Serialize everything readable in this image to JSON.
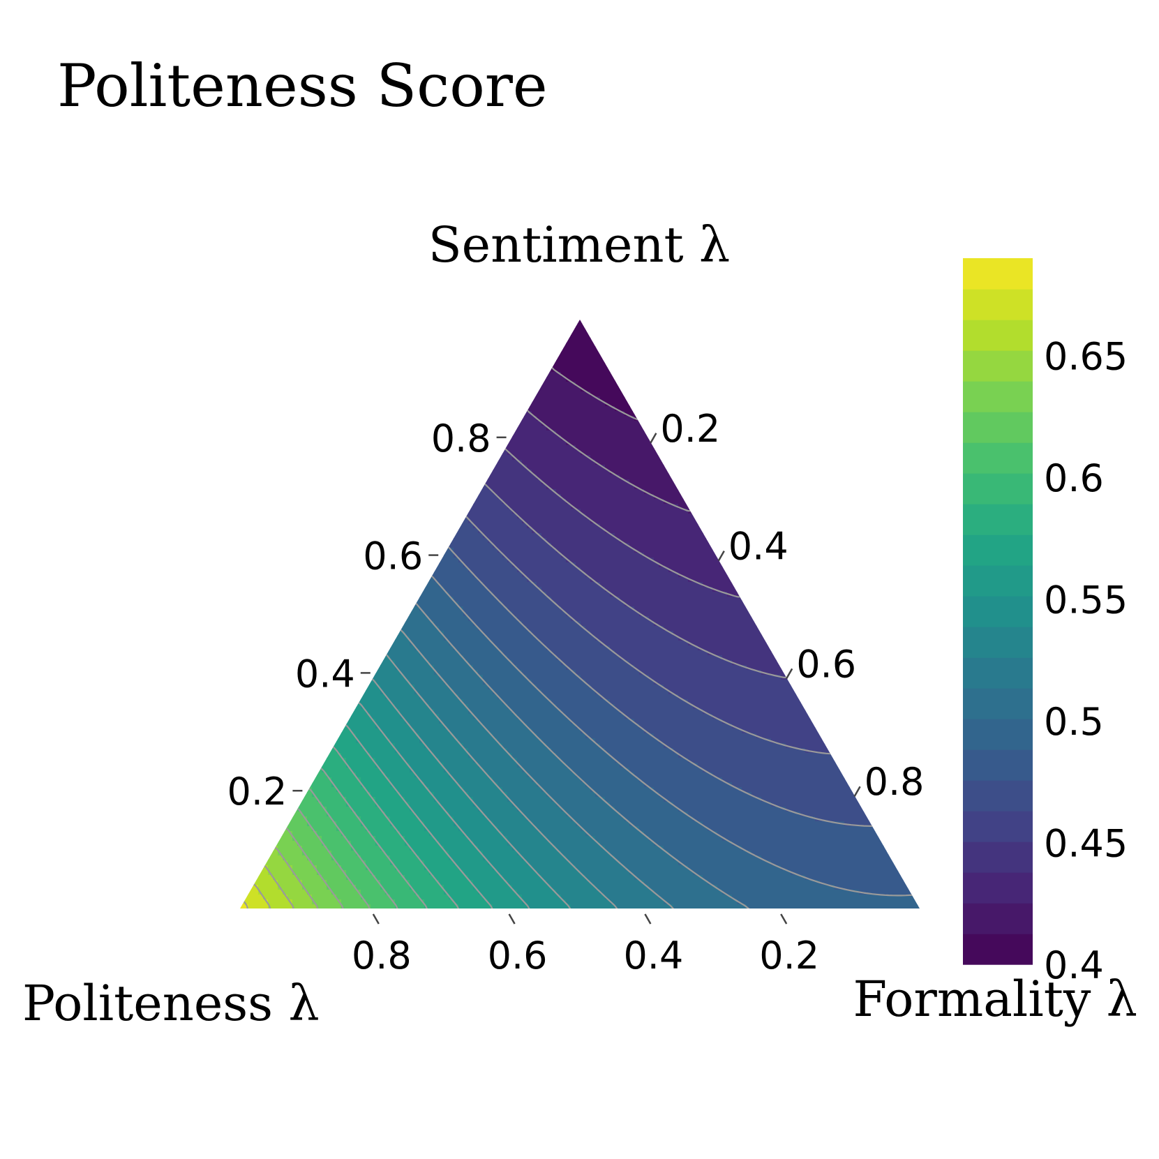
{
  "chart_data": {
    "type": "ternary-contour",
    "title": "Politeness Score",
    "axes": {
      "top": {
        "label": "Sentiment λ",
        "ticks": [
          "0.8",
          "0.6",
          "0.4",
          "0.2"
        ],
        "tick_values": [
          0.8,
          0.6,
          0.4,
          0.2
        ]
      },
      "right": {
        "label": "Formality λ",
        "ticks": [
          "0.2",
          "0.4",
          "0.6",
          "0.8"
        ],
        "tick_values": [
          0.2,
          0.4,
          0.6,
          0.8
        ]
      },
      "left": {
        "label": "Politeness λ",
        "ticks": [
          "0.8",
          "0.6",
          "0.4",
          "0.2"
        ],
        "tick_values": [
          0.8,
          0.6,
          0.4,
          0.2
        ]
      }
    },
    "colorbar": {
      "min": 0.4,
      "max": 0.69,
      "step": 0.0125,
      "ticks": [
        "0.65",
        "0.6",
        "0.55",
        "0.5",
        "0.45",
        "0.4"
      ],
      "tick_values": [
        0.65,
        0.6,
        0.55,
        0.5,
        0.45,
        0.4
      ],
      "colormap": "viridis"
    },
    "contour_levels": [
      0.4125,
      0.425,
      0.4375,
      0.45,
      0.4625,
      0.475,
      0.4875,
      0.5,
      0.5125,
      0.525,
      0.5375,
      0.55,
      0.5625,
      0.575,
      0.5875,
      0.6,
      0.6125,
      0.625,
      0.6375,
      0.65,
      0.6625,
      0.675
    ],
    "corner_values": [
      {
        "politeness": 1.0,
        "formality": 0.0,
        "sentiment": 0.0,
        "score": 0.68
      },
      {
        "politeness": 0.0,
        "formality": 1.0,
        "sentiment": 0.0,
        "score": 0.49
      },
      {
        "politeness": 0.0,
        "formality": 0.0,
        "sentiment": 1.0,
        "score": 0.4
      }
    ],
    "colors": {
      "contour_line": "#9a9a9a",
      "tick_mark": "#444444",
      "viridis_stops": [
        "#440154",
        "#482475",
        "#414487",
        "#355f8d",
        "#2a788e",
        "#21918c",
        "#22a884",
        "#44bf70",
        "#7ad151",
        "#bddf26",
        "#fde725"
      ]
    }
  }
}
